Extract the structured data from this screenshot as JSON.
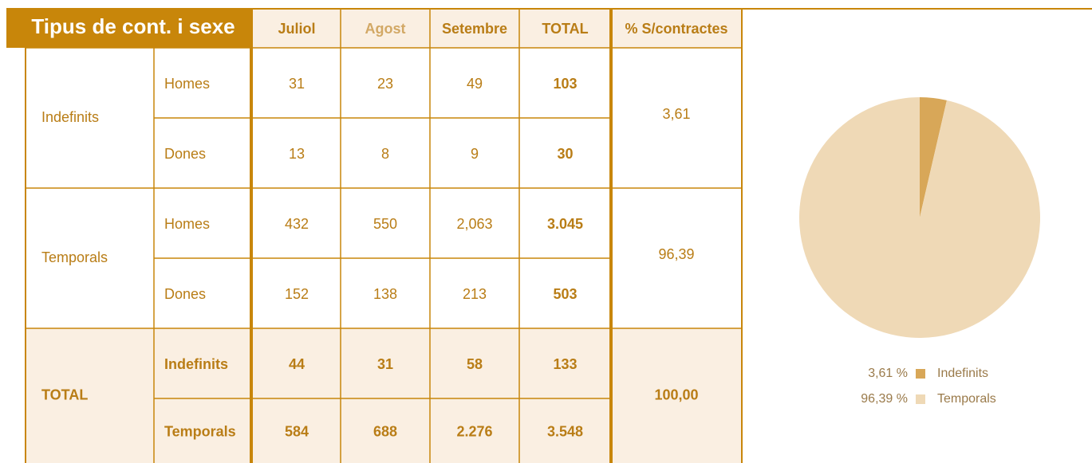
{
  "table": {
    "title": "Tipus de cont. i sexe",
    "columns": [
      "Juliol",
      "Agost",
      "Setembre",
      "TOTAL",
      "% S/contractes"
    ],
    "groups": [
      {
        "label": "Indefinits",
        "pct": "3,61",
        "rows": [
          {
            "label": "Homes",
            "cells": [
              "31",
              "23",
              "49",
              "103"
            ]
          },
          {
            "label": "Dones",
            "cells": [
              "13",
              "8",
              "9",
              "30"
            ]
          }
        ]
      },
      {
        "label": "Temporals",
        "pct": "96,39",
        "rows": [
          {
            "label": "Homes",
            "cells": [
              "432",
              "550",
              "2,063",
              "3.045"
            ]
          },
          {
            "label": "Dones",
            "cells": [
              "152",
              "138",
              "213",
              "503"
            ]
          }
        ]
      },
      {
        "label": "TOTAL",
        "pct": "100,00",
        "rows": [
          {
            "label": "Indefinits",
            "cells": [
              "44",
              "31",
              "58",
              "133"
            ]
          },
          {
            "label": "Temporals",
            "cells": [
              "584",
              "688",
              "2.276",
              "3.548"
            ]
          }
        ]
      }
    ]
  },
  "chart_data": {
    "type": "pie",
    "categories": [
      "Indefinits",
      "Temporals"
    ],
    "values": [
      3.61,
      96.39
    ],
    "value_labels": [
      "3,61 %",
      "96,39 %"
    ],
    "colors": [
      "#d8a758",
      "#efd9b6"
    ]
  }
}
